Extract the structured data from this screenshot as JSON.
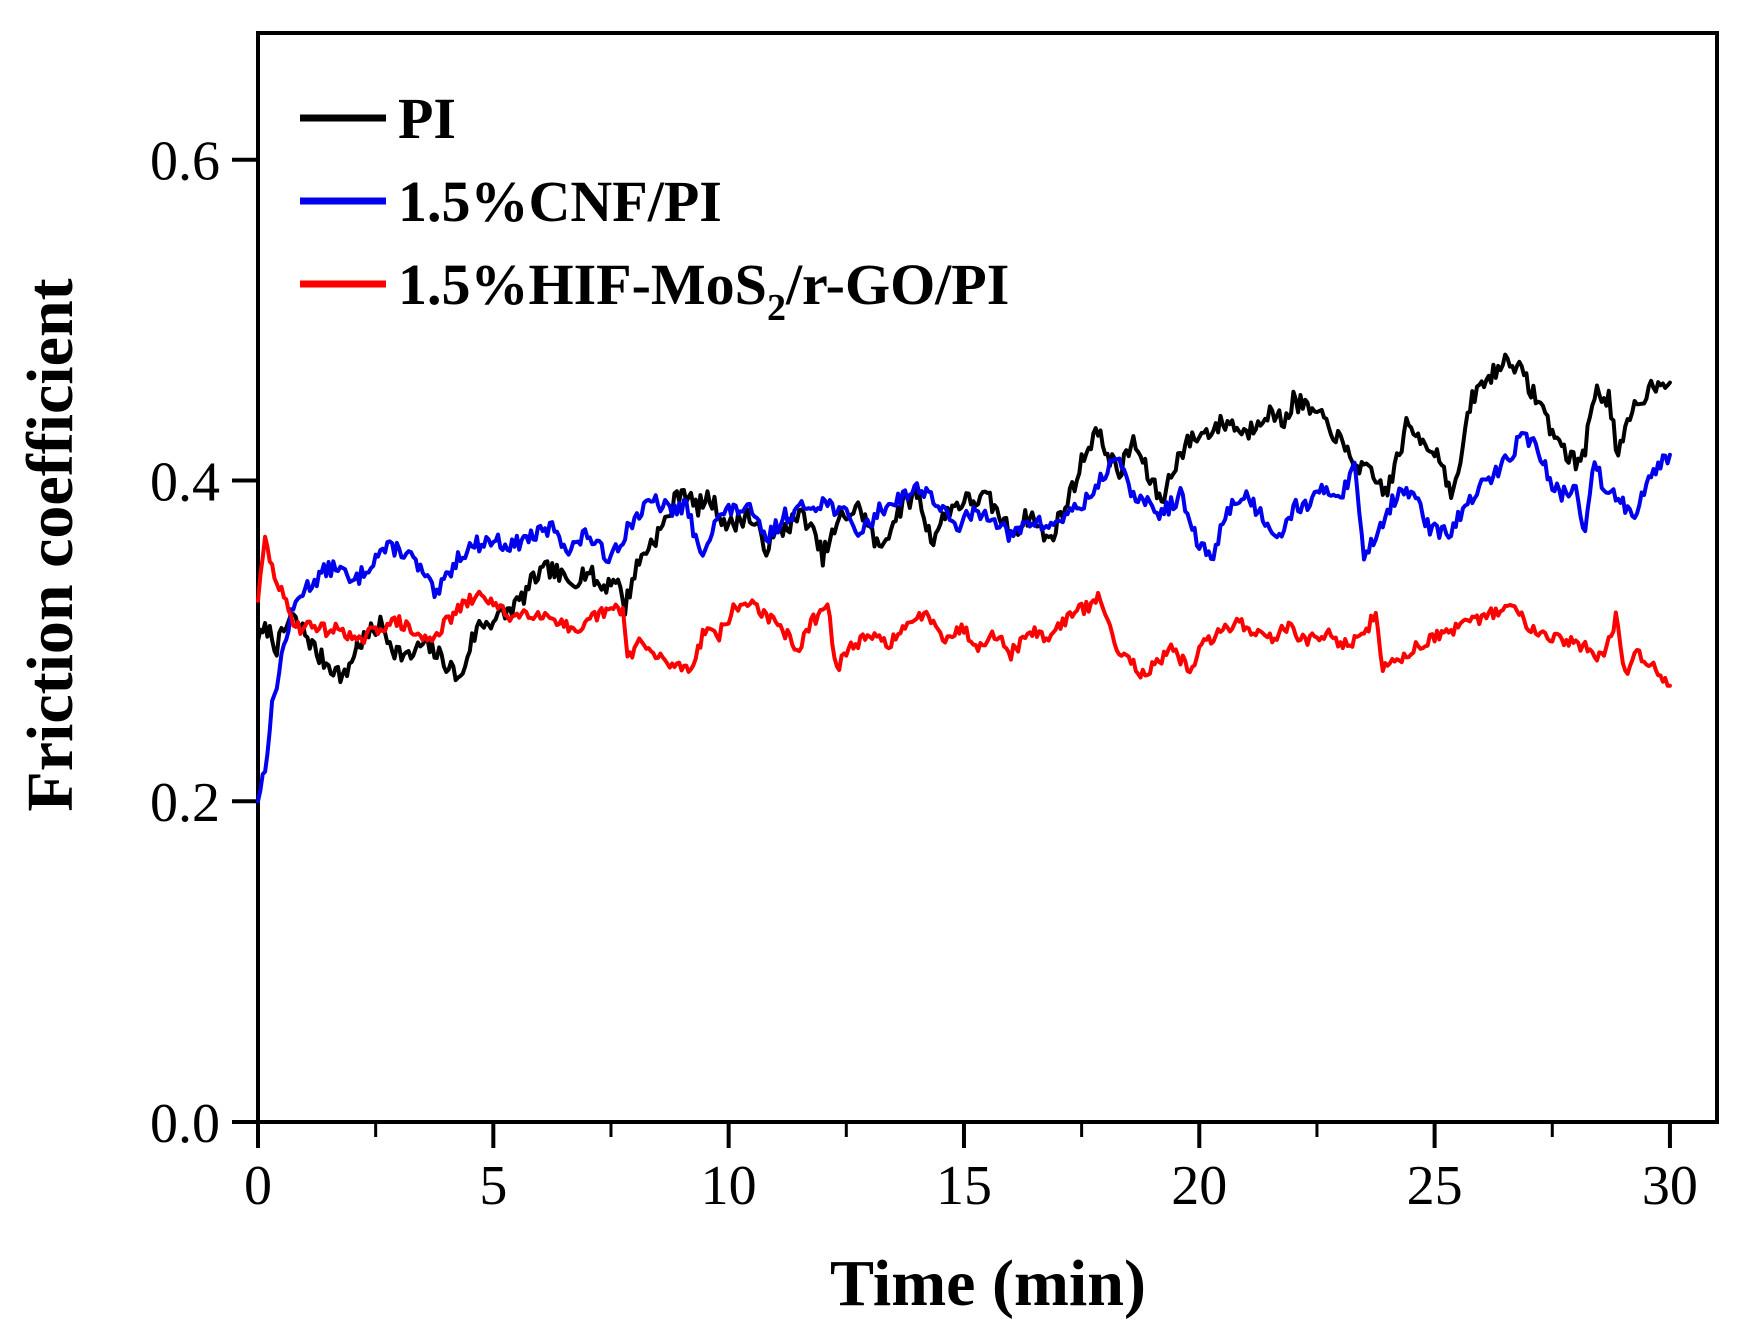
{
  "background": "#ffffff",
  "chart_data": {
    "type": "line",
    "title": "",
    "xlabel": "Time (min)",
    "ylabel": "Friction coefficient",
    "x_range": [
      0,
      31
    ],
    "y_range": [
      0,
      0.679
    ],
    "x_major_ticks": [
      0,
      5,
      10,
      15,
      20,
      25,
      30
    ],
    "x_minor_ticks": [
      2.5,
      7.5,
      12.5,
      17.5,
      22.5,
      27.5
    ],
    "y_major_ticks": [
      0.0,
      0.2,
      0.4,
      0.6
    ],
    "y_tick_labels": [
      "0.0",
      "0.2",
      "0.4",
      "0.6"
    ],
    "grid": false,
    "legend_position": "top-left",
    "axis_color": "#000000",
    "series": [
      {
        "name": "PI",
        "label_parts": [
          {
            "text": "PI"
          }
        ],
        "color": "#000000",
        "noise": 0.006,
        "seed": 7,
        "points": [
          [
            0,
            0.3
          ],
          [
            0.2,
            0.308
          ],
          [
            0.4,
            0.296
          ],
          [
            0.7,
            0.315
          ],
          [
            1.0,
            0.305
          ],
          [
            1.3,
            0.29
          ],
          [
            1.6,
            0.283
          ],
          [
            1.84,
            0.277
          ],
          [
            2.1,
            0.297
          ],
          [
            2.4,
            0.305
          ],
          [
            2.6,
            0.31
          ],
          [
            2.9,
            0.295
          ],
          [
            3.2,
            0.289
          ],
          [
            3.5,
            0.298
          ],
          [
            3.8,
            0.292
          ],
          [
            4.1,
            0.283
          ],
          [
            4.3,
            0.275
          ],
          [
            4.5,
            0.297
          ],
          [
            4.7,
            0.31
          ],
          [
            5.0,
            0.313
          ],
          [
            5.3,
            0.318
          ],
          [
            5.6,
            0.326
          ],
          [
            5.9,
            0.34
          ],
          [
            6.2,
            0.345
          ],
          [
            6.6,
            0.336
          ],
          [
            7.0,
            0.344
          ],
          [
            7.3,
            0.333
          ],
          [
            7.6,
            0.34
          ],
          [
            7.8,
            0.321
          ],
          [
            8.0,
            0.343
          ],
          [
            8.2,
            0.355
          ],
          [
            8.6,
            0.371
          ],
          [
            9.0,
            0.396
          ],
          [
            9.3,
            0.383
          ],
          [
            9.6,
            0.389
          ],
          [
            10.0,
            0.371
          ],
          [
            10.4,
            0.379
          ],
          [
            10.8,
            0.359
          ],
          [
            11.2,
            0.371
          ],
          [
            11.6,
            0.379
          ],
          [
            12.0,
            0.353
          ],
          [
            12.4,
            0.377
          ],
          [
            12.8,
            0.383
          ],
          [
            13.2,
            0.356
          ],
          [
            13.6,
            0.381
          ],
          [
            14.0,
            0.393
          ],
          [
            14.3,
            0.363
          ],
          [
            14.7,
            0.383
          ],
          [
            15.0,
            0.387
          ],
          [
            15.5,
            0.389
          ],
          [
            16.0,
            0.367
          ],
          [
            16.4,
            0.379
          ],
          [
            16.8,
            0.362
          ],
          [
            17.2,
            0.387
          ],
          [
            17.6,
            0.419
          ],
          [
            17.8,
            0.431
          ],
          [
            18.0,
            0.42
          ],
          [
            18.3,
            0.404
          ],
          [
            18.6,
            0.425
          ],
          [
            18.9,
            0.404
          ],
          [
            19.2,
            0.387
          ],
          [
            19.5,
            0.412
          ],
          [
            19.8,
            0.425
          ],
          [
            20.2,
            0.431
          ],
          [
            20.6,
            0.437
          ],
          [
            21.0,
            0.429
          ],
          [
            21.4,
            0.443
          ],
          [
            21.8,
            0.437
          ],
          [
            22.0,
            0.45
          ],
          [
            22.4,
            0.443
          ],
          [
            22.8,
            0.433
          ],
          [
            23.2,
            0.414
          ],
          [
            23.6,
            0.404
          ],
          [
            24.0,
            0.393
          ],
          [
            24.4,
            0.433
          ],
          [
            24.8,
            0.425
          ],
          [
            25.1,
            0.415
          ],
          [
            25.4,
            0.39
          ],
          [
            25.8,
            0.452
          ],
          [
            26.2,
            0.466
          ],
          [
            26.6,
            0.477
          ],
          [
            26.9,
            0.464
          ],
          [
            27.2,
            0.45
          ],
          [
            27.6,
            0.425
          ],
          [
            28.0,
            0.41
          ],
          [
            28.2,
            0.421
          ],
          [
            28.4,
            0.455
          ],
          [
            28.7,
            0.452
          ],
          [
            28.9,
            0.414
          ],
          [
            29.2,
            0.443
          ],
          [
            29.5,
            0.455
          ],
          [
            29.8,
            0.464
          ],
          [
            30.0,
            0.461
          ]
        ]
      },
      {
        "name": "1.5%CNF/PI",
        "label_parts": [
          {
            "text": "1.5%CNF/PI"
          }
        ],
        "color": "#0000ee",
        "noise": 0.005,
        "seed": 13,
        "points": [
          [
            0,
            0.2
          ],
          [
            0.15,
            0.222
          ],
          [
            0.3,
            0.258
          ],
          [
            0.5,
            0.29
          ],
          [
            0.7,
            0.315
          ],
          [
            0.9,
            0.33
          ],
          [
            1.1,
            0.335
          ],
          [
            1.4,
            0.343
          ],
          [
            1.7,
            0.347
          ],
          [
            2.0,
            0.335
          ],
          [
            2.3,
            0.345
          ],
          [
            2.6,
            0.356
          ],
          [
            2.9,
            0.358
          ],
          [
            3.2,
            0.354
          ],
          [
            3.5,
            0.342
          ],
          [
            3.8,
            0.327
          ],
          [
            4.0,
            0.34
          ],
          [
            4.3,
            0.354
          ],
          [
            4.6,
            0.36
          ],
          [
            5.0,
            0.363
          ],
          [
            5.4,
            0.359
          ],
          [
            5.7,
            0.364
          ],
          [
            6.0,
            0.367
          ],
          [
            6.3,
            0.371
          ],
          [
            6.6,
            0.356
          ],
          [
            7.0,
            0.367
          ],
          [
            7.4,
            0.352
          ],
          [
            7.7,
            0.362
          ],
          [
            8.0,
            0.377
          ],
          [
            8.4,
            0.387
          ],
          [
            8.8,
            0.381
          ],
          [
            9.1,
            0.385
          ],
          [
            9.4,
            0.352
          ],
          [
            9.7,
            0.375
          ],
          [
            10.0,
            0.381
          ],
          [
            10.4,
            0.383
          ],
          [
            10.8,
            0.363
          ],
          [
            11.2,
            0.378
          ],
          [
            11.6,
            0.383
          ],
          [
            12.0,
            0.387
          ],
          [
            12.4,
            0.381
          ],
          [
            12.8,
            0.367
          ],
          [
            13.2,
            0.381
          ],
          [
            13.6,
            0.389
          ],
          [
            14.1,
            0.396
          ],
          [
            14.4,
            0.387
          ],
          [
            14.8,
            0.371
          ],
          [
            15.2,
            0.379
          ],
          [
            15.6,
            0.379
          ],
          [
            16.0,
            0.364
          ],
          [
            16.4,
            0.375
          ],
          [
            16.8,
            0.371
          ],
          [
            17.2,
            0.379
          ],
          [
            17.6,
            0.387
          ],
          [
            18.0,
            0.404
          ],
          [
            18.2,
            0.417
          ],
          [
            18.5,
            0.395
          ],
          [
            18.8,
            0.387
          ],
          [
            19.2,
            0.379
          ],
          [
            19.6,
            0.391
          ],
          [
            20.0,
            0.358
          ],
          [
            20.3,
            0.353
          ],
          [
            20.6,
            0.383
          ],
          [
            21.0,
            0.391
          ],
          [
            21.3,
            0.379
          ],
          [
            21.7,
            0.366
          ],
          [
            22.0,
            0.383
          ],
          [
            22.4,
            0.387
          ],
          [
            22.7,
            0.395
          ],
          [
            23.0,
            0.391
          ],
          [
            23.3,
            0.408
          ],
          [
            23.5,
            0.353
          ],
          [
            23.8,
            0.369
          ],
          [
            24.1,
            0.387
          ],
          [
            24.5,
            0.395
          ],
          [
            24.9,
            0.369
          ],
          [
            25.3,
            0.367
          ],
          [
            25.6,
            0.381
          ],
          [
            26.0,
            0.396
          ],
          [
            26.4,
            0.408
          ],
          [
            26.9,
            0.429
          ],
          [
            27.2,
            0.42
          ],
          [
            27.5,
            0.395
          ],
          [
            27.8,
            0.391
          ],
          [
            28.0,
            0.395
          ],
          [
            28.2,
            0.367
          ],
          [
            28.4,
            0.412
          ],
          [
            28.6,
            0.395
          ],
          [
            28.9,
            0.391
          ],
          [
            29.2,
            0.377
          ],
          [
            29.5,
            0.399
          ],
          [
            29.8,
            0.412
          ],
          [
            30.0,
            0.416
          ]
        ]
      },
      {
        "name": "1.5%HIF-MoS2/r-GO/PI",
        "label_parts": [
          {
            "text": "1.5%HIF-MoS"
          },
          {
            "text": "2",
            "sub": true
          },
          {
            "text": "/r-GO/PI"
          }
        ],
        "color": "#ff0000",
        "noise": 0.004,
        "seed": 29,
        "points": [
          [
            0,
            0.325
          ],
          [
            0.15,
            0.363
          ],
          [
            0.3,
            0.345
          ],
          [
            0.5,
            0.33
          ],
          [
            0.7,
            0.315
          ],
          [
            0.9,
            0.308
          ],
          [
            1.2,
            0.31
          ],
          [
            1.5,
            0.306
          ],
          [
            1.8,
            0.308
          ],
          [
            2.1,
            0.298
          ],
          [
            2.4,
            0.305
          ],
          [
            2.7,
            0.31
          ],
          [
            3.0,
            0.312
          ],
          [
            3.3,
            0.305
          ],
          [
            3.6,
            0.3
          ],
          [
            3.9,
            0.308
          ],
          [
            4.2,
            0.318
          ],
          [
            4.5,
            0.325
          ],
          [
            4.8,
            0.329
          ],
          [
            5.1,
            0.32
          ],
          [
            5.4,
            0.315
          ],
          [
            5.7,
            0.318
          ],
          [
            6.0,
            0.317
          ],
          [
            6.4,
            0.313
          ],
          [
            6.8,
            0.302
          ],
          [
            7.1,
            0.315
          ],
          [
            7.5,
            0.319
          ],
          [
            7.75,
            0.32
          ],
          [
            7.85,
            0.289
          ],
          [
            8.1,
            0.3
          ],
          [
            8.4,
            0.291
          ],
          [
            8.8,
            0.285
          ],
          [
            9.2,
            0.283
          ],
          [
            9.5,
            0.308
          ],
          [
            9.8,
            0.304
          ],
          [
            10.1,
            0.319
          ],
          [
            10.5,
            0.325
          ],
          [
            10.8,
            0.315
          ],
          [
            11.1,
            0.308
          ],
          [
            11.5,
            0.295
          ],
          [
            11.8,
            0.313
          ],
          [
            12.1,
            0.321
          ],
          [
            12.3,
            0.283
          ],
          [
            12.6,
            0.297
          ],
          [
            13.0,
            0.302
          ],
          [
            13.4,
            0.299
          ],
          [
            13.8,
            0.308
          ],
          [
            14.2,
            0.319
          ],
          [
            14.6,
            0.302
          ],
          [
            15.0,
            0.308
          ],
          [
            15.3,
            0.295
          ],
          [
            15.6,
            0.307
          ],
          [
            16.0,
            0.292
          ],
          [
            16.4,
            0.306
          ],
          [
            16.8,
            0.302
          ],
          [
            17.2,
            0.315
          ],
          [
            17.6,
            0.321
          ],
          [
            17.9,
            0.327
          ],
          [
            18.2,
            0.298
          ],
          [
            18.5,
            0.29
          ],
          [
            18.8,
            0.279
          ],
          [
            19.1,
            0.285
          ],
          [
            19.4,
            0.294
          ],
          [
            19.8,
            0.283
          ],
          [
            20.1,
            0.298
          ],
          [
            20.4,
            0.304
          ],
          [
            20.8,
            0.313
          ],
          [
            21.1,
            0.306
          ],
          [
            21.5,
            0.302
          ],
          [
            21.9,
            0.308
          ],
          [
            22.3,
            0.3
          ],
          [
            22.7,
            0.304
          ],
          [
            23.1,
            0.298
          ],
          [
            23.5,
            0.302
          ],
          [
            23.75,
            0.319
          ],
          [
            23.9,
            0.283
          ],
          [
            24.2,
            0.287
          ],
          [
            24.6,
            0.296
          ],
          [
            25.0,
            0.303
          ],
          [
            25.4,
            0.306
          ],
          [
            25.8,
            0.312
          ],
          [
            26.2,
            0.317
          ],
          [
            26.6,
            0.322
          ],
          [
            27.0,
            0.31
          ],
          [
            27.4,
            0.304
          ],
          [
            27.8,
            0.3
          ],
          [
            28.2,
            0.296
          ],
          [
            28.6,
            0.289
          ],
          [
            28.85,
            0.314
          ],
          [
            29.05,
            0.279
          ],
          [
            29.3,
            0.293
          ],
          [
            29.6,
            0.285
          ],
          [
            29.8,
            0.279
          ],
          [
            30.0,
            0.272
          ]
        ]
      }
    ]
  }
}
